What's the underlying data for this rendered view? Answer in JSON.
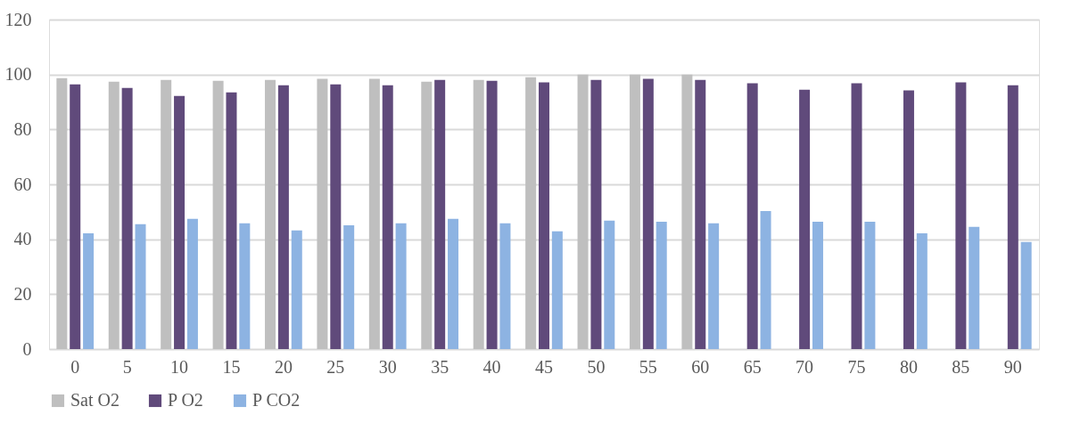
{
  "chart_data": {
    "type": "bar",
    "categories": [
      "0",
      "5",
      "10",
      "15",
      "20",
      "25",
      "30",
      "35",
      "40",
      "45",
      "50",
      "55",
      "60",
      "65",
      "70",
      "75",
      "80",
      "85",
      "90"
    ],
    "series": [
      {
        "name": "Sat O2",
        "color": "#bfbfbf",
        "values": [
          98.7,
          97.4,
          98.0,
          97.7,
          98.0,
          98.4,
          98.4,
          97.4,
          98.0,
          99.0,
          100,
          100,
          100,
          null,
          null,
          null,
          null,
          null,
          null
        ]
      },
      {
        "name": "P O2",
        "color": "#604a7b",
        "values": [
          96.4,
          95.1,
          92.2,
          93.5,
          96.1,
          96.4,
          96.1,
          98.0,
          97.7,
          97.1,
          98.0,
          98.4,
          98.0,
          96.8,
          94.5,
          96.8,
          94.2,
          97.1,
          96.1
        ]
      },
      {
        "name": "P CO2",
        "color": "#8db3e2",
        "values": [
          42.2,
          45.5,
          47.4,
          45.8,
          43.2,
          45.1,
          45.8,
          47.4,
          45.8,
          42.9,
          46.8,
          46.4,
          45.8,
          50.3,
          46.4,
          46.4,
          42.2,
          44.5,
          39.0
        ]
      }
    ],
    "ylim": [
      0,
      120
    ],
    "yticks": [
      0,
      20,
      40,
      60,
      80,
      100,
      120
    ],
    "grid": "y",
    "legend": "bottom"
  }
}
